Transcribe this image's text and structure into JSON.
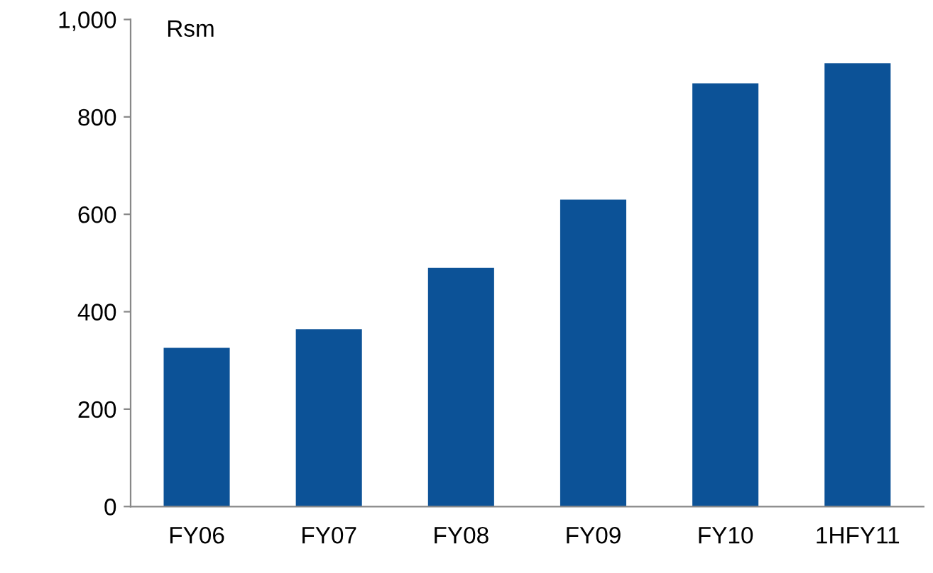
{
  "chart_data": {
    "type": "bar",
    "ylabel": "Rsm",
    "categories": [
      "FY06",
      "FY07",
      "FY08",
      "FY09",
      "FY10",
      "1HFY11"
    ],
    "values": [
      326,
      364,
      490,
      630,
      869,
      910
    ],
    "color": "#0c5297",
    "ylim": [
      0,
      1000
    ],
    "yticks": [
      0,
      200,
      400,
      600,
      800,
      {
        "value": 1000,
        "label": "1,000"
      }
    ],
    "grid": false,
    "legend": false
  }
}
